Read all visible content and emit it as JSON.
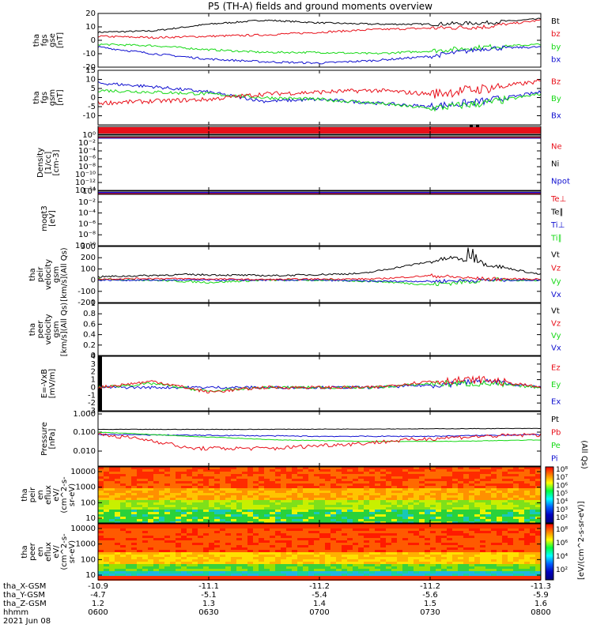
{
  "title": "P5 (TH-A) fields and ground moments overview",
  "date_label": "2021 Jun 08",
  "panels": [
    {
      "id": "fgs_gse",
      "ylabel": [
        "tha",
        "fgs",
        "gse",
        "[nT]"
      ],
      "ylim": [
        -20,
        20
      ],
      "ticks": [
        20,
        10,
        0,
        -10,
        -20
      ],
      "legend": [
        {
          "text": "Bt",
          "color": "#000000"
        },
        {
          "text": "bz",
          "color": "#e8101a"
        },
        {
          "text": "by",
          "color": "#16d916"
        },
        {
          "text": "bx",
          "color": "#1010d0"
        }
      ]
    },
    {
      "id": "fgs_gsm",
      "ylabel": [
        "tha",
        "fgs",
        "gsm",
        "[nT]"
      ],
      "ylim": [
        -15,
        15
      ],
      "ticks": [
        15,
        10,
        5,
        0,
        -5,
        -10
      ],
      "legend": [
        {
          "text": "Bz",
          "color": "#e8101a"
        },
        {
          "text": "By",
          "color": "#16d916"
        },
        {
          "text": "Bx",
          "color": "#1010d0"
        }
      ]
    },
    {
      "id": "flag",
      "ylabel": [],
      "legend": []
    },
    {
      "id": "density",
      "ylabel": [
        "Density",
        "[1/cc]",
        "[cm-3]"
      ],
      "ticks": [
        "10⁰",
        "10⁻²",
        "10⁻⁴",
        "10⁻⁶",
        "10⁻⁸",
        "10⁻¹⁰",
        "10⁻¹²",
        "10⁻¹⁴"
      ],
      "legend": [
        {
          "text": "Ne",
          "color": "#e8101a"
        },
        {
          "text": "Ni",
          "color": "#000000"
        },
        {
          "text": "Npot",
          "color": "#1010d0"
        }
      ]
    },
    {
      "id": "temp",
      "ylabel": [
        "moqt3",
        "[eV]"
      ],
      "ticks": [
        "10⁰",
        "10⁻²",
        "10⁻⁴",
        "10⁻⁶",
        "10⁻⁸",
        "10⁻¹⁰"
      ],
      "legend": [
        {
          "text": "Te⊥",
          "color": "#e8101a"
        },
        {
          "text": "Te∥",
          "color": "#000000"
        },
        {
          "text": "Ti⊥",
          "color": "#1010d0"
        },
        {
          "text": "Ti∥",
          "color": "#16d916"
        }
      ]
    },
    {
      "id": "peir_vel",
      "ylabel": [
        "tha",
        "peir",
        "velocity",
        "gsm",
        "[km/s](All Qs)"
      ],
      "ylim": [
        -200,
        300
      ],
      "ticks": [
        300,
        200,
        100,
        0,
        -100,
        -200
      ],
      "legend": [
        {
          "text": "Vt",
          "color": "#000000"
        },
        {
          "text": "Vz",
          "color": "#e8101a"
        },
        {
          "text": "Vy",
          "color": "#16d916"
        },
        {
          "text": "Vx",
          "color": "#1010d0"
        }
      ]
    },
    {
      "id": "peer_vel",
      "ylabel": [
        "tha",
        "peer",
        "velocity",
        "gsm",
        "[km/s](All Qs)"
      ],
      "ylim": [
        0,
        1
      ],
      "ticks": [
        1.0,
        0.8,
        0.6,
        0.4,
        0.2,
        0.0
      ],
      "legend": [
        {
          "text": "Vt",
          "color": "#000000"
        },
        {
          "text": "Vz",
          "color": "#e8101a"
        },
        {
          "text": "Vy",
          "color": "#16d916"
        },
        {
          "text": "Vx",
          "color": "#1010d0"
        }
      ]
    },
    {
      "id": "efield",
      "ylabel": [
        "E=-VxB",
        "[mV/m]"
      ],
      "ylim": [
        -3,
        4
      ],
      "ticks": [
        4,
        3,
        2,
        1,
        0,
        -1,
        -2,
        -3
      ],
      "legend": [
        {
          "text": "Ez",
          "color": "#e8101a"
        },
        {
          "text": "Ey",
          "color": "#16d916"
        },
        {
          "text": "Ex",
          "color": "#1010d0"
        }
      ]
    },
    {
      "id": "pressure",
      "ylabel": [
        "Pressure",
        "[nPa]"
      ],
      "ticks": [
        "1.000",
        "0.100",
        "0.010"
      ],
      "legend": [
        {
          "text": "Pt",
          "color": "#000000"
        },
        {
          "text": "Pb",
          "color": "#e8101a"
        },
        {
          "text": "Pe",
          "color": "#16d916"
        },
        {
          "text": "Pi",
          "color": "#1010d0"
        }
      ],
      "side_label": "(All Qs)"
    },
    {
      "id": "peir_eflux",
      "ylabel": [
        "tha",
        "peir",
        "en",
        "eflux",
        "eV/",
        "(cm^2-s-",
        "sr-eV)"
      ],
      "ticks": [
        10000,
        1000,
        100,
        10
      ],
      "legend": []
    },
    {
      "id": "peer_eflux",
      "ylabel": [
        "tha",
        "peer",
        "en",
        "eflux",
        "eV/",
        "(cm^2-s-",
        "sr-eV)"
      ],
      "ticks": [
        10000,
        1000,
        100,
        10
      ],
      "legend": []
    }
  ],
  "colorbar": {
    "label": "[eV/(cm^2-s-sr-eV)]",
    "ticks_upper": [
      "10⁸",
      "10⁷",
      "10⁶",
      "10⁵",
      "10⁴",
      "10³",
      "10²"
    ],
    "ticks_lower": [
      "10⁸",
      "10⁶",
      "10⁴",
      "10²"
    ]
  },
  "x_axis": {
    "row_labels": [
      "tha_X-GSM",
      "tha_Y-GSM",
      "tha_Z-GSM",
      "hhmm"
    ],
    "columns": [
      {
        "x": "-10.9",
        "y": "-4.7",
        "z": "1.2",
        "t": "0600"
      },
      {
        "x": "-11.1",
        "y": "-5.1",
        "z": "1.3",
        "t": "0630"
      },
      {
        "x": "-11.2",
        "y": "-5.4",
        "z": "1.4",
        "t": "0700"
      },
      {
        "x": "-11.2",
        "y": "-5.6",
        "z": "1.5",
        "t": "0730"
      },
      {
        "x": "-11.3",
        "y": "-5.9",
        "z": "1.6",
        "t": "0800"
      }
    ]
  },
  "chart_data": {
    "type": "line",
    "title": "P5 (TH-A) fields and ground moments overview",
    "x_range_hhmm": [
      "0600",
      "0800"
    ],
    "series_approx": {
      "Bt_nT": {
        "t_min": [
          0,
          15,
          30,
          45,
          60,
          75,
          90,
          105,
          120
        ],
        "values": [
          6,
          7,
          12,
          15,
          13,
          12,
          12,
          13,
          16
        ]
      },
      "bz_gse_nT": {
        "t_min": [
          0,
          15,
          30,
          45,
          60,
          75,
          90,
          105,
          120
        ],
        "values": [
          3,
          2,
          3,
          4,
          6,
          8,
          9,
          10,
          15
        ]
      },
      "by_gse_nT": {
        "t_min": [
          0,
          15,
          30,
          45,
          60,
          75,
          90,
          105,
          120
        ],
        "values": [
          -3,
          -4,
          -7,
          -9,
          -9,
          -10,
          -8,
          -5,
          -3
        ]
      },
      "bx_gse_nT": {
        "t_min": [
          0,
          15,
          30,
          45,
          60,
          75,
          90,
          105,
          120
        ],
        "values": [
          -5,
          -10,
          -14,
          -16,
          -17,
          -15,
          -12,
          -6,
          -5
        ]
      },
      "Vt_peir_kms": {
        "t_min": [
          0,
          30,
          60,
          90,
          105,
          120
        ],
        "values": [
          30,
          50,
          40,
          60,
          200,
          50
        ]
      },
      "Pt_nPa": {
        "t_min": [
          0,
          60,
          120
        ],
        "values": [
          0.2,
          0.2,
          0.22
        ]
      },
      "Pb_nPa": {
        "t_min": [
          0,
          30,
          60,
          90,
          120
        ],
        "values": [
          0.12,
          0.04,
          0.05,
          0.09,
          0.12
        ]
      },
      "Pe_nPa": {
        "t_min": [
          0,
          30,
          60,
          90,
          120
        ],
        "values": [
          0.15,
          0.1,
          0.06,
          0.05,
          0.07
        ]
      }
    }
  }
}
